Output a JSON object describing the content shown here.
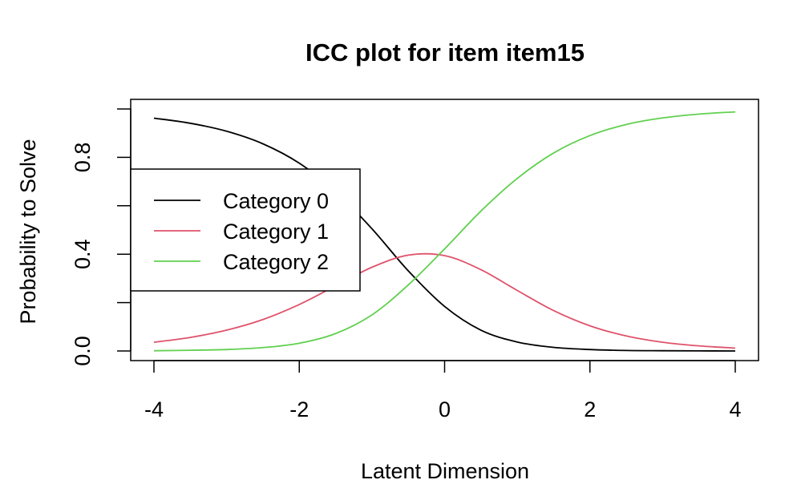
{
  "chart_data": {
    "type": "line",
    "title": "ICC plot for item item15",
    "xlabel": "Latent Dimension",
    "ylabel": "Probability to Solve",
    "xlim": [
      -4,
      4
    ],
    "ylim": [
      0.0,
      1.0
    ],
    "x_ticks": [
      -4,
      -2,
      0,
      2,
      4
    ],
    "x_tick_labels": [
      "-4",
      "-2",
      "0",
      "2",
      "4"
    ],
    "y_ticks": [
      0.0,
      0.2,
      0.4,
      0.6,
      0.8,
      1.0
    ],
    "y_tick_labels": [
      "0.0",
      "",
      "0.4",
      "",
      "0.8",
      ""
    ],
    "grid": false,
    "legend": {
      "position": "left",
      "entries": [
        "Category 0",
        "Category 1",
        "Category 2"
      ]
    },
    "x": [
      -4,
      -3.5,
      -3,
      -2.5,
      -2,
      -1.5,
      -1,
      -0.5,
      0,
      0.5,
      1,
      1.5,
      2,
      2.5,
      3,
      3.5,
      4
    ],
    "series": [
      {
        "name": "Category 0",
        "color": "#000000",
        "values": [
          0.962,
          0.941,
          0.908,
          0.856,
          0.776,
          0.659,
          0.505,
          0.331,
          0.184,
          0.086,
          0.037,
          0.015,
          0.006,
          0.002,
          0.001,
          0.0004,
          0.0001
        ]
      },
      {
        "name": "Category 1",
        "color": "#DF536B",
        "values": [
          0.036,
          0.056,
          0.086,
          0.13,
          0.192,
          0.269,
          0.346,
          0.396,
          0.394,
          0.336,
          0.25,
          0.167,
          0.104,
          0.062,
          0.036,
          0.021,
          0.012
        ]
      },
      {
        "name": "Category 2",
        "color": "#61D04F",
        "values": [
          0.001,
          0.003,
          0.006,
          0.014,
          0.032,
          0.072,
          0.149,
          0.273,
          0.422,
          0.578,
          0.713,
          0.818,
          0.89,
          0.936,
          0.963,
          0.979,
          0.988
        ]
      }
    ]
  }
}
